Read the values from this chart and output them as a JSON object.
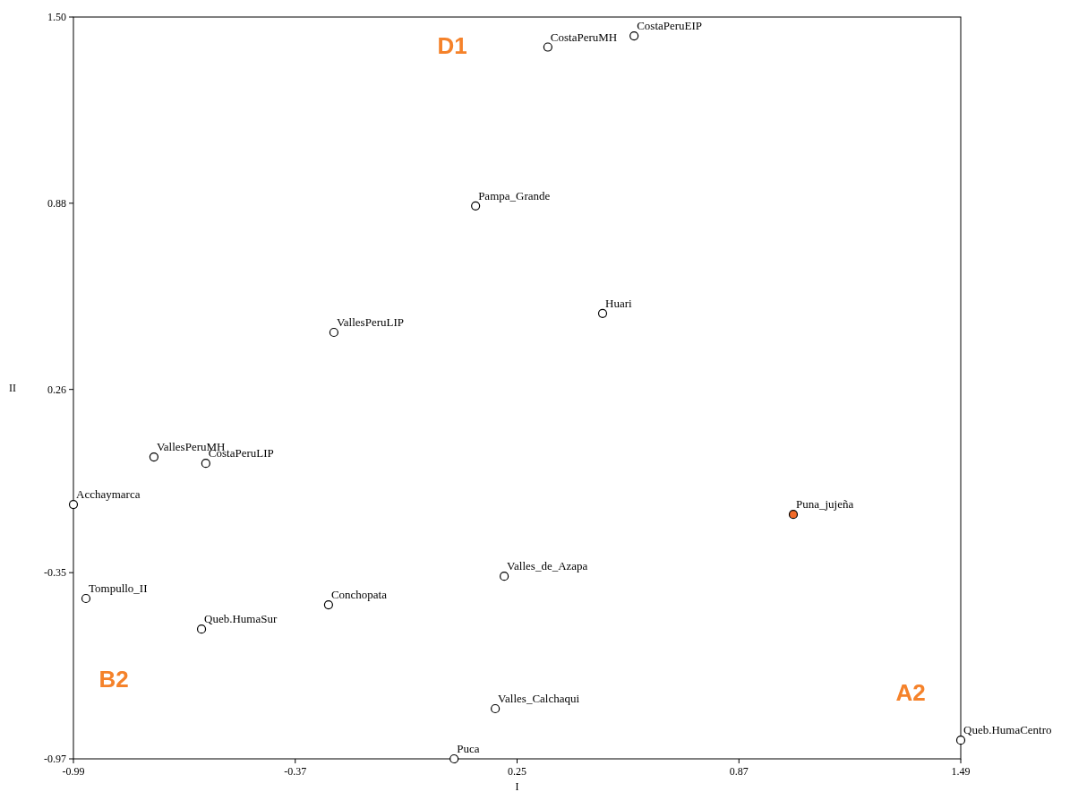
{
  "chart_data": {
    "type": "scatter",
    "xlabel": "I",
    "ylabel": "II",
    "xlim": [
      -0.99,
      1.49
    ],
    "ylim": [
      -0.97,
      1.5
    ],
    "xticks": [
      -0.99,
      -0.37,
      0.25,
      0.87,
      1.49
    ],
    "yticks": [
      -0.97,
      -0.35,
      0.26,
      0.88,
      {
        "value": 1.5,
        "label": "1.50"
      }
    ],
    "grid": false,
    "marker": "circle",
    "series": [
      {
        "name": "CostaPeruMH",
        "color": "#ffffff",
        "x": [
          0.336
        ],
        "values": [
          1.4
        ]
      },
      {
        "name": "CostaPeruEIP",
        "color": "#ffffff",
        "x": [
          0.577
        ],
        "values": [
          1.437
        ]
      },
      {
        "name": "Pampa_Grande",
        "color": "#ffffff",
        "x": [
          0.134
        ],
        "values": [
          0.871
        ]
      },
      {
        "name": "Huari",
        "color": "#ffffff",
        "x": [
          0.489
        ],
        "values": [
          0.513
        ]
      },
      {
        "name": "VallesPeruLIP",
        "color": "#ffffff",
        "x": [
          -0.262
        ],
        "values": [
          0.45
        ]
      },
      {
        "name": "VallesPeruMH",
        "color": "#ffffff",
        "x": [
          -0.765
        ],
        "values": [
          0.035
        ]
      },
      {
        "name": "CostaPeruLIP",
        "color": "#ffffff",
        "x": [
          -0.62
        ],
        "values": [
          0.014
        ]
      },
      {
        "name": "Acchaymarca",
        "color": "#ffffff",
        "x": [
          -0.99
        ],
        "values": [
          -0.123
        ]
      },
      {
        "name": "Puna_jujeña",
        "color": "#f26b2a",
        "x": [
          1.022
        ],
        "values": [
          -0.156
        ]
      },
      {
        "name": "Valles_de_Azapa",
        "color": "#ffffff",
        "x": [
          0.214
        ],
        "values": [
          -0.362
        ]
      },
      {
        "name": "Tompullo_II",
        "color": "#ffffff",
        "x": [
          -0.955
        ],
        "values": [
          -0.436
        ]
      },
      {
        "name": "Conchopata",
        "color": "#ffffff",
        "x": [
          -0.277
        ],
        "values": [
          -0.457
        ]
      },
      {
        "name": "Queb.HumaSur",
        "color": "#ffffff",
        "x": [
          -0.632
        ],
        "values": [
          -0.538
        ]
      },
      {
        "name": "Valles_Calchaqui",
        "color": "#ffffff",
        "x": [
          0.189
        ],
        "values": [
          -0.803
        ]
      },
      {
        "name": "Queb.HumaCentro",
        "color": "#ffffff",
        "x": [
          1.49
        ],
        "values": [
          -0.908
        ]
      },
      {
        "name": "Puca",
        "color": "#ffffff",
        "x": [
          0.074
        ],
        "values": [
          -0.97
        ]
      }
    ],
    "annotations": [
      "D1",
      "B2",
      "A2"
    ]
  }
}
